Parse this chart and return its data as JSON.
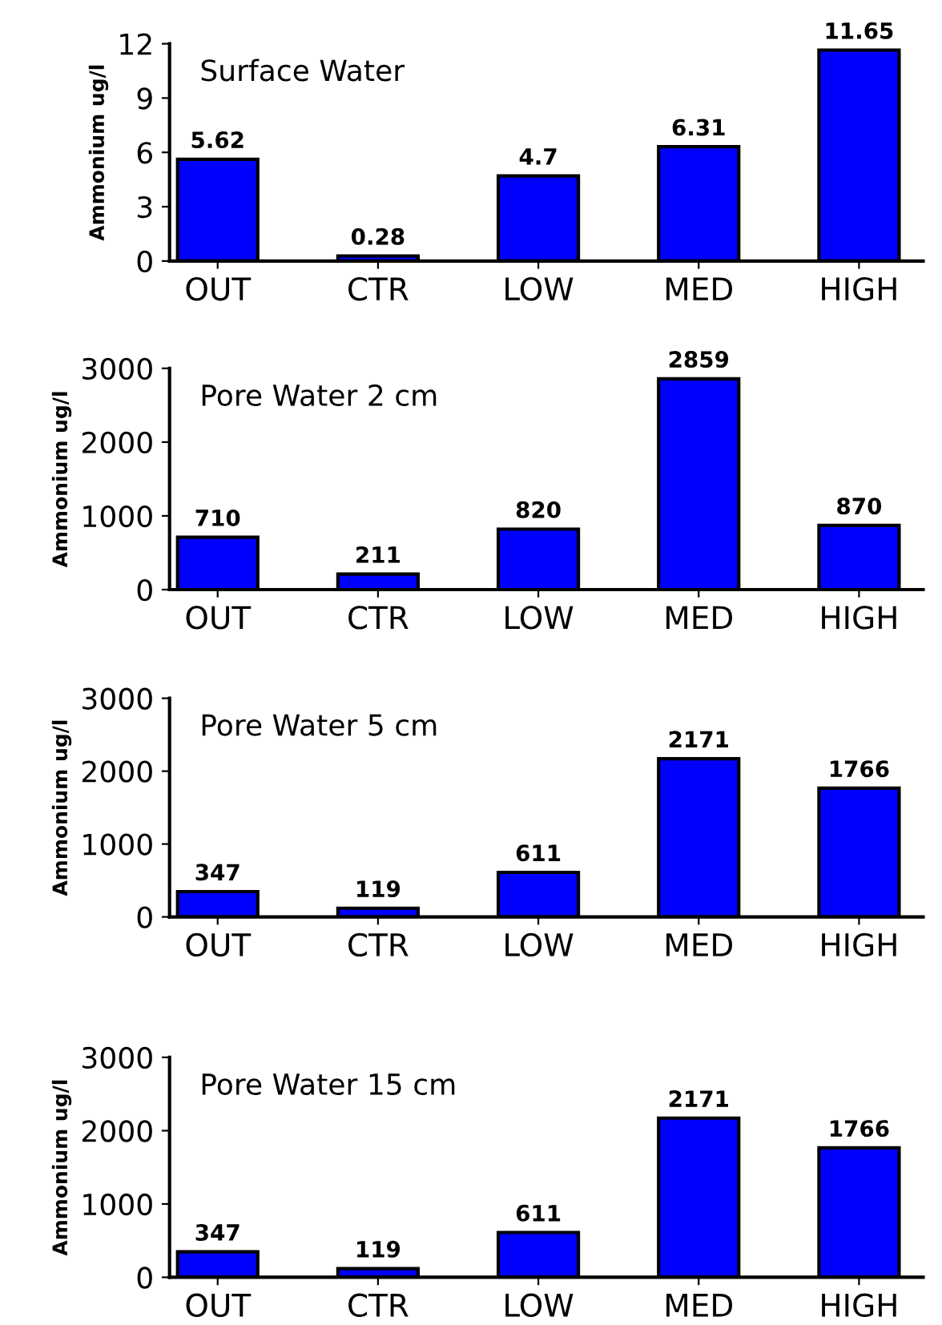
{
  "chart_data": [
    {
      "type": "bar",
      "title": "Surface Water",
      "ylabel": "Ammonium ug/l",
      "categories": [
        "OUT",
        "CTR",
        "LOW",
        "MED",
        "HIGH"
      ],
      "values": [
        5.62,
        0.28,
        4.7,
        6.31,
        11.65
      ],
      "color": "#0000ff",
      "ylim": [
        0,
        12
      ],
      "yticks": [
        0,
        3,
        6,
        9,
        12
      ],
      "data_labels": true,
      "grid": false
    },
    {
      "type": "bar",
      "title": "Pore Water 2 cm",
      "ylabel": "Ammonium ug/l",
      "categories": [
        "OUT",
        "CTR",
        "LOW",
        "MED",
        "HIGH"
      ],
      "values": [
        710,
        211,
        820,
        2859,
        870
      ],
      "color": "#0000ff",
      "ylim": [
        0,
        3000
      ],
      "yticks": [
        0,
        1000,
        2000,
        3000
      ],
      "data_labels": true,
      "grid": false
    },
    {
      "type": "bar",
      "title": "Pore Water 5 cm",
      "ylabel": "Ammonium ug/l",
      "categories": [
        "OUT",
        "CTR",
        "LOW",
        "MED",
        "HIGH"
      ],
      "values": [
        347,
        119,
        611,
        2171,
        1766
      ],
      "color": "#0000ff",
      "ylim": [
        0,
        3000
      ],
      "yticks": [
        0,
        1000,
        2000,
        3000
      ],
      "data_labels": true,
      "grid": false
    },
    {
      "type": "bar",
      "title": "Pore Water 15 cm",
      "ylabel": "Ammonium ug/l",
      "categories": [
        "OUT",
        "CTR",
        "LOW",
        "MED",
        "HIGH"
      ],
      "values": [
        347,
        119,
        611,
        2171,
        1766
      ],
      "color": "#0000ff",
      "ylim": [
        0,
        3000
      ],
      "yticks": [
        0,
        1000,
        2000,
        3000
      ],
      "data_labels": true,
      "grid": false
    }
  ]
}
